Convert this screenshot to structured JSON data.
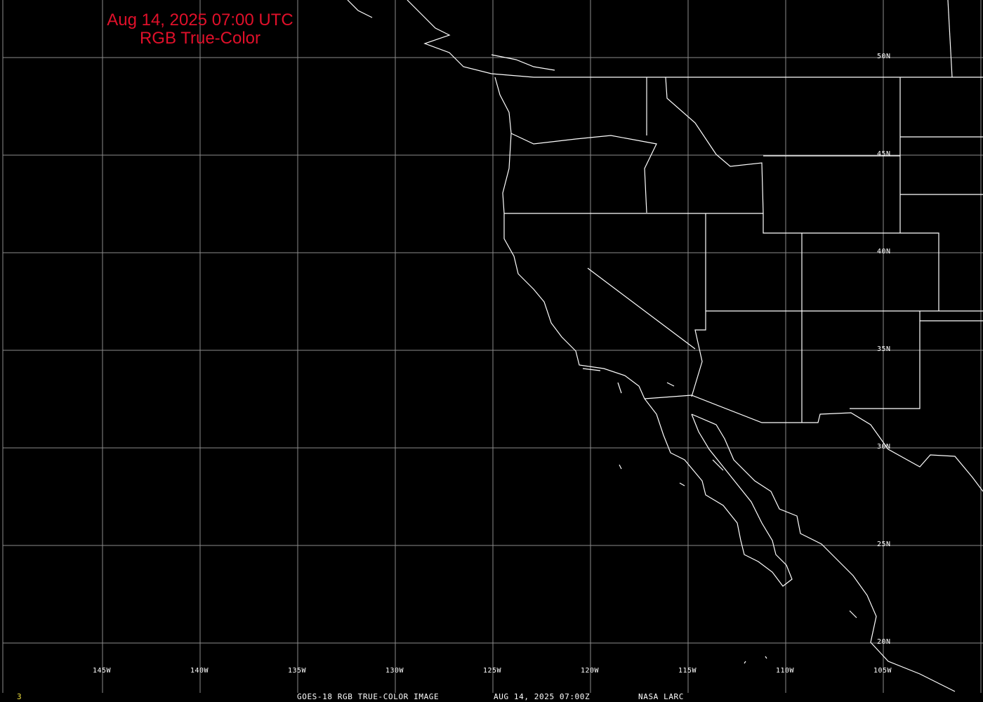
{
  "title": {
    "line1": "Aug 14, 2025 07:00 UTC",
    "line2": "RGB True-Color",
    "color": "#e0102a"
  },
  "map": {
    "projection": "lat-lon grid",
    "lon_range": [
      "150W",
      "100W"
    ],
    "lat_range": [
      "18N",
      "52N"
    ],
    "lat_labels": [
      "50N",
      "45N",
      "40N",
      "35N",
      "30N",
      "25N",
      "20N"
    ],
    "lon_labels": [
      "145W",
      "140W",
      "135W",
      "130W",
      "125W",
      "120W",
      "115W",
      "110W",
      "105W"
    ],
    "grid_color": "#8c8c8c",
    "boundary_color": "#ffffff"
  },
  "footer": {
    "frame_number": "3",
    "caption": "GOES-18 RGB TRUE-COLOR IMAGE",
    "timestamp": "AUG 14, 2025 07:00Z",
    "credit": "NASA LARC"
  }
}
